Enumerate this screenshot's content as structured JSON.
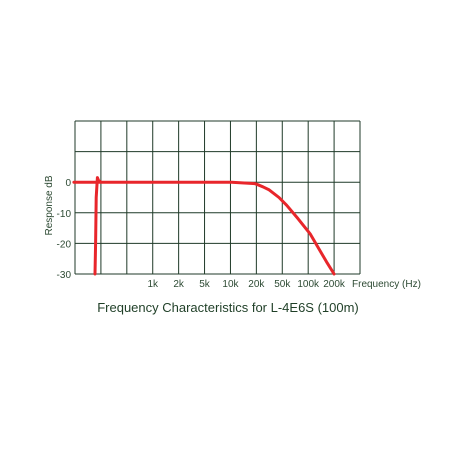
{
  "chart_data": {
    "type": "line",
    "title": "Frequency Characteristics for L-4E6S (100m)",
    "xlabel": "Frequency (Hz)",
    "ylabel": "Response dB",
    "x_scale": "log",
    "xlim": [
      12,
      400000
    ],
    "ylim": [
      -30,
      20
    ],
    "x_ticks": [
      {
        "value": 1000,
        "label": "1k"
      },
      {
        "value": 2000,
        "label": "2k"
      },
      {
        "value": 5000,
        "label": "5k"
      },
      {
        "value": 10000,
        "label": "10k"
      },
      {
        "value": 20000,
        "label": "20k"
      },
      {
        "value": 50000,
        "label": "50k"
      },
      {
        "value": 100000,
        "label": "100k"
      },
      {
        "value": 200000,
        "label": "200k"
      }
    ],
    "y_ticks": [
      0,
      -10,
      -20,
      -30
    ],
    "grid": true,
    "series": [
      {
        "color": "#e8262b",
        "x": [
          20,
          21,
          22,
          24,
          26,
          30,
          40,
          100,
          1000,
          10000,
          20000,
          25000,
          30000,
          40000,
          50000,
          70000,
          100000,
          130000,
          160000,
          200000
        ],
        "y": [
          -30,
          -20,
          -5,
          1.5,
          0.5,
          0,
          0,
          0,
          0,
          0,
          -0.5,
          -1.5,
          -2.5,
          -5,
          -7.5,
          -12,
          -17,
          -22,
          -26,
          -30
        ]
      }
    ]
  },
  "colors": {
    "grid": "#1f3a28",
    "line": "#e8262b",
    "text": "#2d4a33"
  }
}
